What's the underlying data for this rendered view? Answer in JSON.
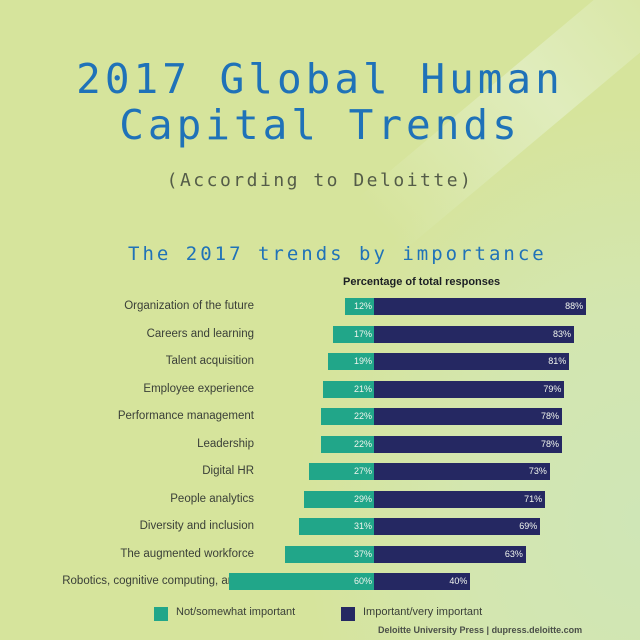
{
  "header": {
    "title_line1": "2017 Global Human",
    "title_line2": "Capital Trends",
    "subtitle": "(According to Deloitte)"
  },
  "chart_data": {
    "type": "bar",
    "orientation": "horizontal-stacked",
    "title": "The 2017 trends by importance",
    "xlabel": "Percentage of total responses",
    "ylabel": "",
    "xlim": [
      0,
      100
    ],
    "grid": false,
    "legend_position": "bottom",
    "categories": [
      "Organization of the future",
      "Careers and learning",
      "Talent acquisition",
      "Employee experience",
      "Performance management",
      "Leadership",
      "Digital HR",
      "People analytics",
      "Diversity and inclusion",
      "The augmented workforce",
      "Robotics, cognitive computing, and AI"
    ],
    "series": [
      {
        "name": "Not/somewhat important",
        "color": "#21a689",
        "values": [
          12,
          17,
          19,
          21,
          22,
          22,
          27,
          29,
          31,
          37,
          60
        ]
      },
      {
        "name": "Important/very important",
        "color": "#252862",
        "values": [
          88,
          83,
          81,
          79,
          78,
          78,
          73,
          71,
          69,
          63,
          40
        ]
      }
    ]
  },
  "chart": {
    "title": "The 2017 trends by importance",
    "axis_label": "Percentage of total responses",
    "rows": [
      {
        "label": "Organization of the future",
        "not": "12%",
        "imp": "88%"
      },
      {
        "label": "Careers and learning",
        "not": "17%",
        "imp": "83%"
      },
      {
        "label": "Talent acquisition",
        "not": "19%",
        "imp": "81%"
      },
      {
        "label": "Employee experience",
        "not": "21%",
        "imp": "79%"
      },
      {
        "label": "Performance management",
        "not": "22%",
        "imp": "78%"
      },
      {
        "label": "Leadership",
        "not": "22%",
        "imp": "78%"
      },
      {
        "label": "Digital HR",
        "not": "27%",
        "imp": "73%"
      },
      {
        "label": "People analytics",
        "not": "29%",
        "imp": "71%"
      },
      {
        "label": "Diversity and inclusion",
        "not": "31%",
        "imp": "69%"
      },
      {
        "label": "The augmented workforce",
        "not": "37%",
        "imp": "63%"
      },
      {
        "label": "Robotics, cognitive computing, and AI",
        "not": "60%",
        "imp": "40%"
      }
    ]
  },
  "legend": {
    "not_label": "Not/somewhat important",
    "imp_label": "Important/very important"
  },
  "footer": {
    "source": "Deloitte University Press  |  dupress.deloitte.com"
  }
}
